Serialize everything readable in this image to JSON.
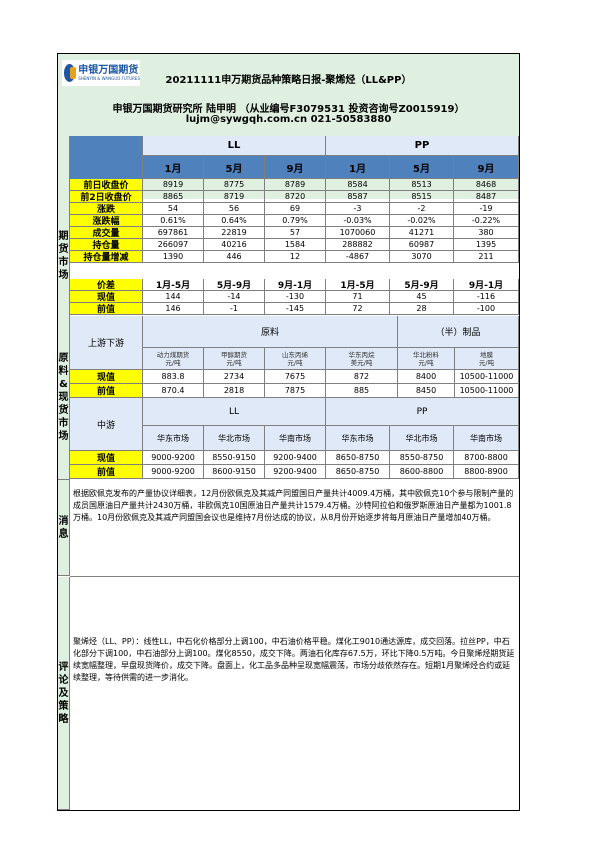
{
  "header": {
    "logo_cn": "申银万国期货",
    "logo_en": "SHENYIN & WANGUO FUTURES",
    "title": "20211111申万期货品种策略日报-聚烯烃（LL&PP）",
    "author": "申银万国期货研究所 陆甲明 （从业编号F3079531 投资咨询号Z0015919）",
    "contact": "lujm@sywgqh.com.cn 021-50583880"
  },
  "futures": {
    "section_label": "期货市场",
    "groups": [
      "LL",
      "PP"
    ],
    "months": [
      "1月",
      "5月",
      "9月",
      "1月",
      "5月",
      "9月"
    ],
    "rows": [
      {
        "label": "前日收盘价",
        "values": [
          "8919",
          "8775",
          "8789",
          "8584",
          "8513",
          "8468"
        ]
      },
      {
        "label": "前2日收盘价",
        "values": [
          "8865",
          "8719",
          "8720",
          "8587",
          "8515",
          "8487"
        ]
      },
      {
        "label": "涨跌",
        "values": [
          "54",
          "56",
          "69",
          "-3",
          "-2",
          "-19"
        ]
      },
      {
        "label": "涨跌幅",
        "values": [
          "0.61%",
          "0.64%",
          "0.79%",
          "-0.03%",
          "-0.02%",
          "-0.22%"
        ]
      },
      {
        "label": "成交量",
        "values": [
          "697861",
          "22819",
          "57",
          "1070060",
          "41271",
          "380"
        ]
      },
      {
        "label": "持仓量",
        "values": [
          "266097",
          "40216",
          "1584",
          "288882",
          "60987",
          "1395"
        ]
      },
      {
        "label": "持仓量增减",
        "values": [
          "1390",
          "446",
          "12",
          "-4867",
          "3070",
          "211"
        ]
      }
    ],
    "spread_label": "价差",
    "spread_headers": [
      "1月-5月",
      "5月-9月",
      "9月-1月",
      "1月-5月",
      "5月-9月",
      "9月-1月"
    ],
    "spread_rows": [
      {
        "label": "现值",
        "values": [
          "144",
          "-14",
          "-130",
          "71",
          "45",
          "-116"
        ]
      },
      {
        "label": "前值",
        "values": [
          "146",
          "-1",
          "-145",
          "72",
          "28",
          "-100"
        ]
      }
    ]
  },
  "spot": {
    "section_label": "原料&现货市场",
    "updown_label": "上游下游",
    "raw_label": "原料",
    "product_label": "（半）制品",
    "items": [
      {
        "name": "动力煤期货",
        "unit": "元/吨"
      },
      {
        "name": "甲醇期货",
        "unit": "元/吨"
      },
      {
        "name": "山东丙烯",
        "unit": "元/吨"
      },
      {
        "name": "华东丙烷",
        "unit": "美元/吨"
      },
      {
        "name": "华北粉料",
        "unit": "元/吨"
      },
      {
        "name": "地膜",
        "unit": "元/吨"
      }
    ],
    "rows": [
      {
        "label": "现值",
        "values": [
          "883.8",
          "2734",
          "7675",
          "872",
          "8400",
          "10500-11000"
        ]
      },
      {
        "label": "前值",
        "values": [
          "870.4",
          "2818",
          "7875",
          "885",
          "8450",
          "10500-11000"
        ]
      }
    ],
    "mid_label": "中游",
    "mid_groups": [
      "LL",
      "PP"
    ],
    "markets": [
      "华东市场",
      "华北市场",
      "华南市场",
      "华东市场",
      "华北市场",
      "华南市场"
    ],
    "mid_rows": [
      {
        "label": "现值",
        "values": [
          "9000-9200",
          "8550-9150",
          "9200-9400",
          "8650-8750",
          "8550-8750",
          "8700-8800"
        ]
      },
      {
        "label": "前值",
        "values": [
          "9000-9200",
          "8600-9150",
          "9200-9400",
          "8650-8750",
          "8600-8800",
          "8800-8900"
        ]
      }
    ]
  },
  "news": {
    "label": "消息",
    "text": "根据欧佩克发布的产量协议详细表，12月份欧佩克及其减产同盟国日产量共计4009.4万桶，其中欧佩克10个参与限制产量的成员国原油日产量共计2430万桶，非欧佩克10国原油日产量共计1579.4万桶。沙特阿拉伯和俄罗斯原油日产量都为1001.8万桶。10月份欧佩克及其减产同盟国会议也是维持7月份达成的协议，从8月份开始逐步将每月原油日产量增加40万桶。"
  },
  "comment": {
    "label": "评论及策略",
    "text": "聚烯烃（LL、PP）：线性LL，中石化价格部分上调100，中石油价格平稳。煤化工9010通达源库，成交回落。拉丝PP，中石化部分下调100，中石油部分上调100。煤化8550，成交下降。两油石化库存67.5万，环比下降0.5万吨。今日聚烯烃期货延续宽幅整理，早盘现货降价，成交下降。盘面上，化工品多品种呈现宽幅震荡，市场分歧依然存在。短期1月聚烯烃合约或延续整理，等待供需的进一步消化。"
  }
}
